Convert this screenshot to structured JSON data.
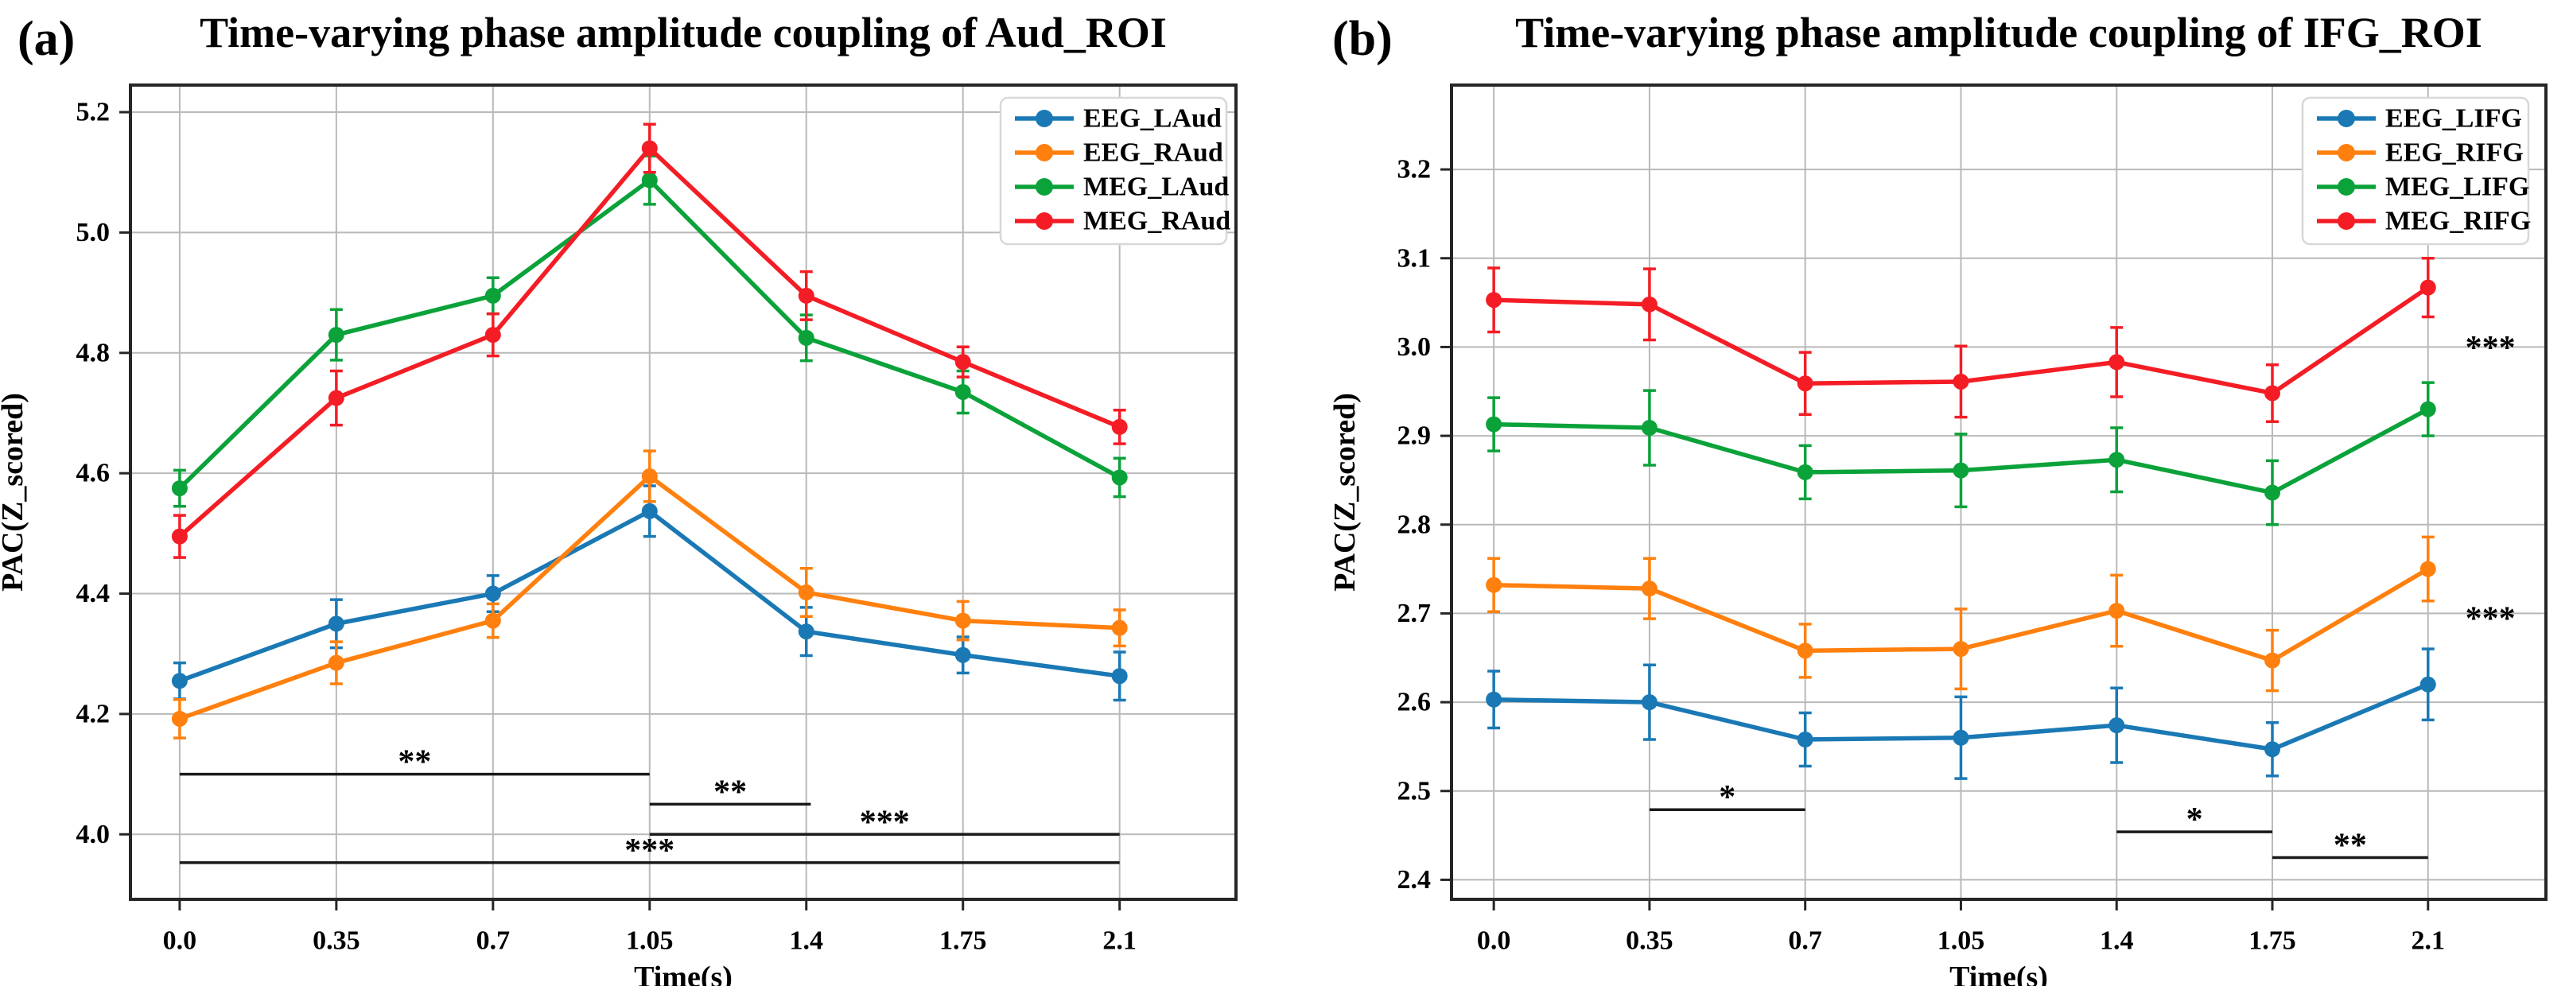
{
  "figure": {
    "description": "Two-panel errorbar line figure of time-varying phase amplitude coupling",
    "background": "#ffffff"
  },
  "chart_data": [
    {
      "type": "line",
      "panel_label": "(a)",
      "title": "Time-varying phase amplitude coupling of Aud_ROI",
      "xlabel": "Time(s)",
      "ylabel": "PAC(Z_scored)",
      "grid": true,
      "legend_position": "upper right",
      "x": [
        0.0,
        0.35,
        0.7,
        1.05,
        1.4,
        1.75,
        2.1
      ],
      "x_tick_labels": [
        "0.0",
        "0.35",
        "0.7",
        "1.05",
        "1.4",
        "1.75",
        "2.1"
      ],
      "y_ticks": [
        5.2,
        5.0,
        4.8,
        4.6,
        4.4,
        4.2,
        4.0
      ],
      "y_tick_labels": [
        "5.2",
        "5.0",
        "4.8",
        "4.6",
        "4.4",
        "4.2",
        "4.0"
      ],
      "xlim": [
        -0.11,
        2.36
      ],
      "ylim": [
        3.892,
        5.245
      ],
      "series": [
        {
          "name": "EEG_LAud",
          "color": "#1a79b5",
          "values": [
            4.255,
            4.35,
            4.4,
            4.537,
            4.337,
            4.298,
            4.263
          ],
          "errors": [
            0.03,
            0.04,
            0.03,
            0.042,
            0.04,
            0.03,
            0.04
          ]
        },
        {
          "name": "EEG_RAud",
          "color": "#ff800e",
          "values": [
            4.192,
            4.285,
            4.355,
            4.595,
            4.402,
            4.355,
            4.343
          ],
          "errors": [
            0.032,
            0.035,
            0.028,
            0.042,
            0.04,
            0.032,
            0.03
          ]
        },
        {
          "name": "MEG_LAud",
          "color": "#0ba23a",
          "values": [
            4.575,
            4.83,
            4.895,
            5.087,
            4.825,
            4.735,
            4.593
          ],
          "errors": [
            0.03,
            0.042,
            0.03,
            0.04,
            0.038,
            0.035,
            0.032
          ]
        },
        {
          "name": "MEG_RAud",
          "color": "#f41d25",
          "values": [
            4.495,
            4.725,
            4.83,
            5.14,
            4.895,
            4.785,
            4.677
          ],
          "errors": [
            0.035,
            0.045,
            0.035,
            0.04,
            0.04,
            0.025,
            0.028
          ]
        }
      ],
      "significance_bars": [
        {
          "x1": 0.0,
          "x2": 1.05,
          "y": 4.1,
          "label": "**"
        },
        {
          "x1": 1.05,
          "x2": 1.41,
          "y": 4.05,
          "label": "**"
        },
        {
          "x1": 1.05,
          "x2": 2.1,
          "y": 4.0,
          "label": "***"
        },
        {
          "x1": 0.0,
          "x2": 2.1,
          "y": 3.953,
          "label": "***"
        }
      ],
      "annotations": []
    },
    {
      "type": "line",
      "panel_label": "(b)",
      "title": "Time-varying phase amplitude coupling of IFG_ROI",
      "xlabel": "Time(s)",
      "ylabel": "PAC(Z_scored)",
      "grid": true,
      "legend_position": "upper right",
      "x": [
        0.0,
        0.35,
        0.7,
        1.05,
        1.4,
        1.75,
        2.1
      ],
      "x_tick_labels": [
        "0.0",
        "0.35",
        "0.7",
        "1.05",
        "1.4",
        "1.75",
        "2.1"
      ],
      "y_ticks": [
        3.2,
        3.1,
        3.0,
        2.9,
        2.8,
        2.7,
        2.6,
        2.5,
        2.4
      ],
      "y_tick_labels": [
        "3.2",
        "3.1",
        "3.0",
        "2.9",
        "2.8",
        "2.7",
        "2.6",
        "2.5",
        "2.4"
      ],
      "xlim": [
        -0.095,
        2.365
      ],
      "ylim": [
        2.378,
        3.295
      ],
      "series": [
        {
          "name": "EEG_LIFG",
          "color": "#1a79b5",
          "values": [
            2.603,
            2.6,
            2.558,
            2.56,
            2.574,
            2.547,
            2.62
          ],
          "errors": [
            0.032,
            0.042,
            0.03,
            0.046,
            0.042,
            0.03,
            0.04
          ]
        },
        {
          "name": "EEG_RIFG",
          "color": "#ff800e",
          "values": [
            2.732,
            2.728,
            2.658,
            2.66,
            2.703,
            2.647,
            2.75
          ],
          "errors": [
            0.03,
            0.034,
            0.03,
            0.045,
            0.04,
            0.034,
            0.036
          ]
        },
        {
          "name": "MEG_LIFG",
          "color": "#0ba23a",
          "values": [
            2.913,
            2.909,
            2.859,
            2.861,
            2.873,
            2.836,
            2.93
          ],
          "errors": [
            0.03,
            0.042,
            0.03,
            0.041,
            0.036,
            0.036,
            0.03
          ]
        },
        {
          "name": "MEG_RIFG",
          "color": "#f41d25",
          "values": [
            3.053,
            3.048,
            2.959,
            2.961,
            2.983,
            2.948,
            3.067
          ],
          "errors": [
            0.036,
            0.04,
            0.035,
            0.04,
            0.039,
            0.032,
            0.033
          ]
        }
      ],
      "significance_bars": [
        {
          "x1": 0.35,
          "x2": 0.7,
          "y": 2.479,
          "label": "*"
        },
        {
          "x1": 1.4,
          "x2": 1.75,
          "y": 2.454,
          "label": "*"
        },
        {
          "x1": 1.75,
          "x2": 2.1,
          "y": 2.425,
          "label": "**"
        }
      ],
      "annotations": [
        {
          "x": 2.24,
          "y": 3.005,
          "text": "***"
        },
        {
          "x": 2.24,
          "y": 2.7,
          "text": "***"
        }
      ]
    }
  ],
  "style": {
    "grid_color": "#b9b9b9",
    "spine_color": "#262626",
    "sig_bar_color": "#1a1a1a",
    "legend_border_color": "#d8d8d8",
    "legend_fill": "#ffffff"
  }
}
